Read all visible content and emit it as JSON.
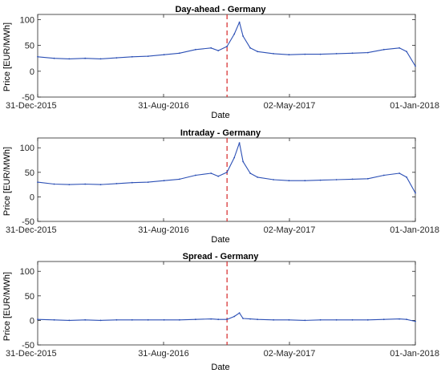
{
  "chart_data": [
    {
      "type": "line",
      "title": "Day-ahead - Germany",
      "xlabel": "Date",
      "ylabel": "Price [EUR/MWh]",
      "ylim": [
        -50,
        110
      ],
      "yticks": [
        -50,
        0,
        50,
        100
      ],
      "xlim": [
        "31-Dec-2015",
        "01-Jan-2018"
      ],
      "xticks": [
        "31-Dec-2015",
        "31-Aug-2016",
        "02-May-2017",
        "01-Jan-2018"
      ],
      "grid": false,
      "reference_line": {
        "x": "01-Jan-2017",
        "style": "dashed",
        "color": "#d62728"
      },
      "series": [
        {
          "color": "#2b4fb5",
          "x": [
            "31-Dec-2015",
            "01-Feb-2016",
            "01-Mar-2016",
            "01-Apr-2016",
            "01-May-2016",
            "01-Jun-2016",
            "01-Jul-2016",
            "01-Aug-2016",
            "01-Sep-2016",
            "01-Oct-2016",
            "01-Nov-2016",
            "01-Dec-2016",
            "15-Dec-2016",
            "01-Jan-2017",
            "15-Jan-2017",
            "25-Jan-2017",
            "01-Feb-2017",
            "15-Feb-2017",
            "01-Mar-2017",
            "01-Apr-2017",
            "01-May-2017",
            "01-Jun-2017",
            "01-Jul-2017",
            "01-Aug-2017",
            "01-Sep-2017",
            "01-Oct-2017",
            "01-Nov-2017",
            "01-Dec-2017",
            "15-Dec-2017",
            "01-Jan-2018"
          ],
          "values": [
            28,
            25,
            24,
            25,
            24,
            26,
            28,
            29,
            32,
            35,
            42,
            45,
            40,
            48,
            72,
            95,
            68,
            45,
            38,
            34,
            32,
            33,
            33,
            34,
            35,
            36,
            42,
            45,
            38,
            10
          ]
        }
      ]
    },
    {
      "type": "line",
      "title": "Intraday - Germany",
      "xlabel": "Date",
      "ylabel": "Price [EUR/MWh]",
      "ylim": [
        -50,
        120
      ],
      "yticks": [
        -50,
        0,
        50,
        100
      ],
      "xlim": [
        "31-Dec-2015",
        "01-Jan-2018"
      ],
      "xticks": [
        "31-Dec-2015",
        "31-Aug-2016",
        "02-May-2017",
        "01-Jan-2018"
      ],
      "grid": false,
      "reference_line": {
        "x": "01-Jan-2017",
        "style": "dashed",
        "color": "#d62728"
      },
      "series": [
        {
          "color": "#2b4fb5",
          "x": [
            "31-Dec-2015",
            "01-Feb-2016",
            "01-Mar-2016",
            "01-Apr-2016",
            "01-May-2016",
            "01-Jun-2016",
            "01-Jul-2016",
            "01-Aug-2016",
            "01-Sep-2016",
            "01-Oct-2016",
            "01-Nov-2016",
            "01-Dec-2016",
            "15-Dec-2016",
            "01-Jan-2017",
            "15-Jan-2017",
            "25-Jan-2017",
            "01-Feb-2017",
            "15-Feb-2017",
            "01-Mar-2017",
            "01-Apr-2017",
            "01-May-2017",
            "01-Jun-2017",
            "01-Jul-2017",
            "01-Aug-2017",
            "01-Sep-2017",
            "01-Oct-2017",
            "01-Nov-2017",
            "01-Dec-2017",
            "15-Dec-2017",
            "01-Jan-2018"
          ],
          "values": [
            30,
            26,
            25,
            26,
            25,
            27,
            29,
            30,
            33,
            36,
            44,
            48,
            42,
            50,
            80,
            110,
            72,
            48,
            40,
            35,
            33,
            33,
            34,
            35,
            36,
            37,
            44,
            48,
            40,
            8
          ]
        }
      ]
    },
    {
      "type": "line",
      "title": "Spread - Germany",
      "xlabel": "Date",
      "ylabel": "Price [EUR/MWh]",
      "ylim": [
        -50,
        120
      ],
      "yticks": [
        -50,
        0,
        50,
        100
      ],
      "xlim": [
        "31-Dec-2015",
        "01-Jan-2018"
      ],
      "xticks": [
        "31-Dec-2015",
        "31-Aug-2016",
        "02-May-2017",
        "01-Jan-2018"
      ],
      "grid": false,
      "reference_line": {
        "x": "01-Jan-2017",
        "style": "dashed",
        "color": "#d62728"
      },
      "series": [
        {
          "color": "#2b4fb5",
          "x": [
            "31-Dec-2015",
            "01-Feb-2016",
            "01-Mar-2016",
            "01-Apr-2016",
            "01-May-2016",
            "01-Jun-2016",
            "01-Jul-2016",
            "01-Aug-2016",
            "01-Sep-2016",
            "01-Oct-2016",
            "01-Nov-2016",
            "01-Dec-2016",
            "15-Dec-2016",
            "01-Jan-2017",
            "15-Jan-2017",
            "25-Jan-2017",
            "01-Feb-2017",
            "15-Feb-2017",
            "01-Mar-2017",
            "01-Apr-2017",
            "01-May-2017",
            "01-Jun-2017",
            "01-Jul-2017",
            "01-Aug-2017",
            "01-Sep-2017",
            "01-Oct-2017",
            "01-Nov-2017",
            "01-Dec-2017",
            "15-Dec-2017",
            "01-Jan-2018"
          ],
          "values": [
            2,
            1,
            0,
            1,
            0,
            1,
            1,
            1,
            1,
            1,
            2,
            3,
            2,
            2,
            8,
            15,
            4,
            3,
            2,
            1,
            1,
            0,
            1,
            1,
            1,
            1,
            2,
            3,
            2,
            -2
          ]
        }
      ]
    }
  ]
}
